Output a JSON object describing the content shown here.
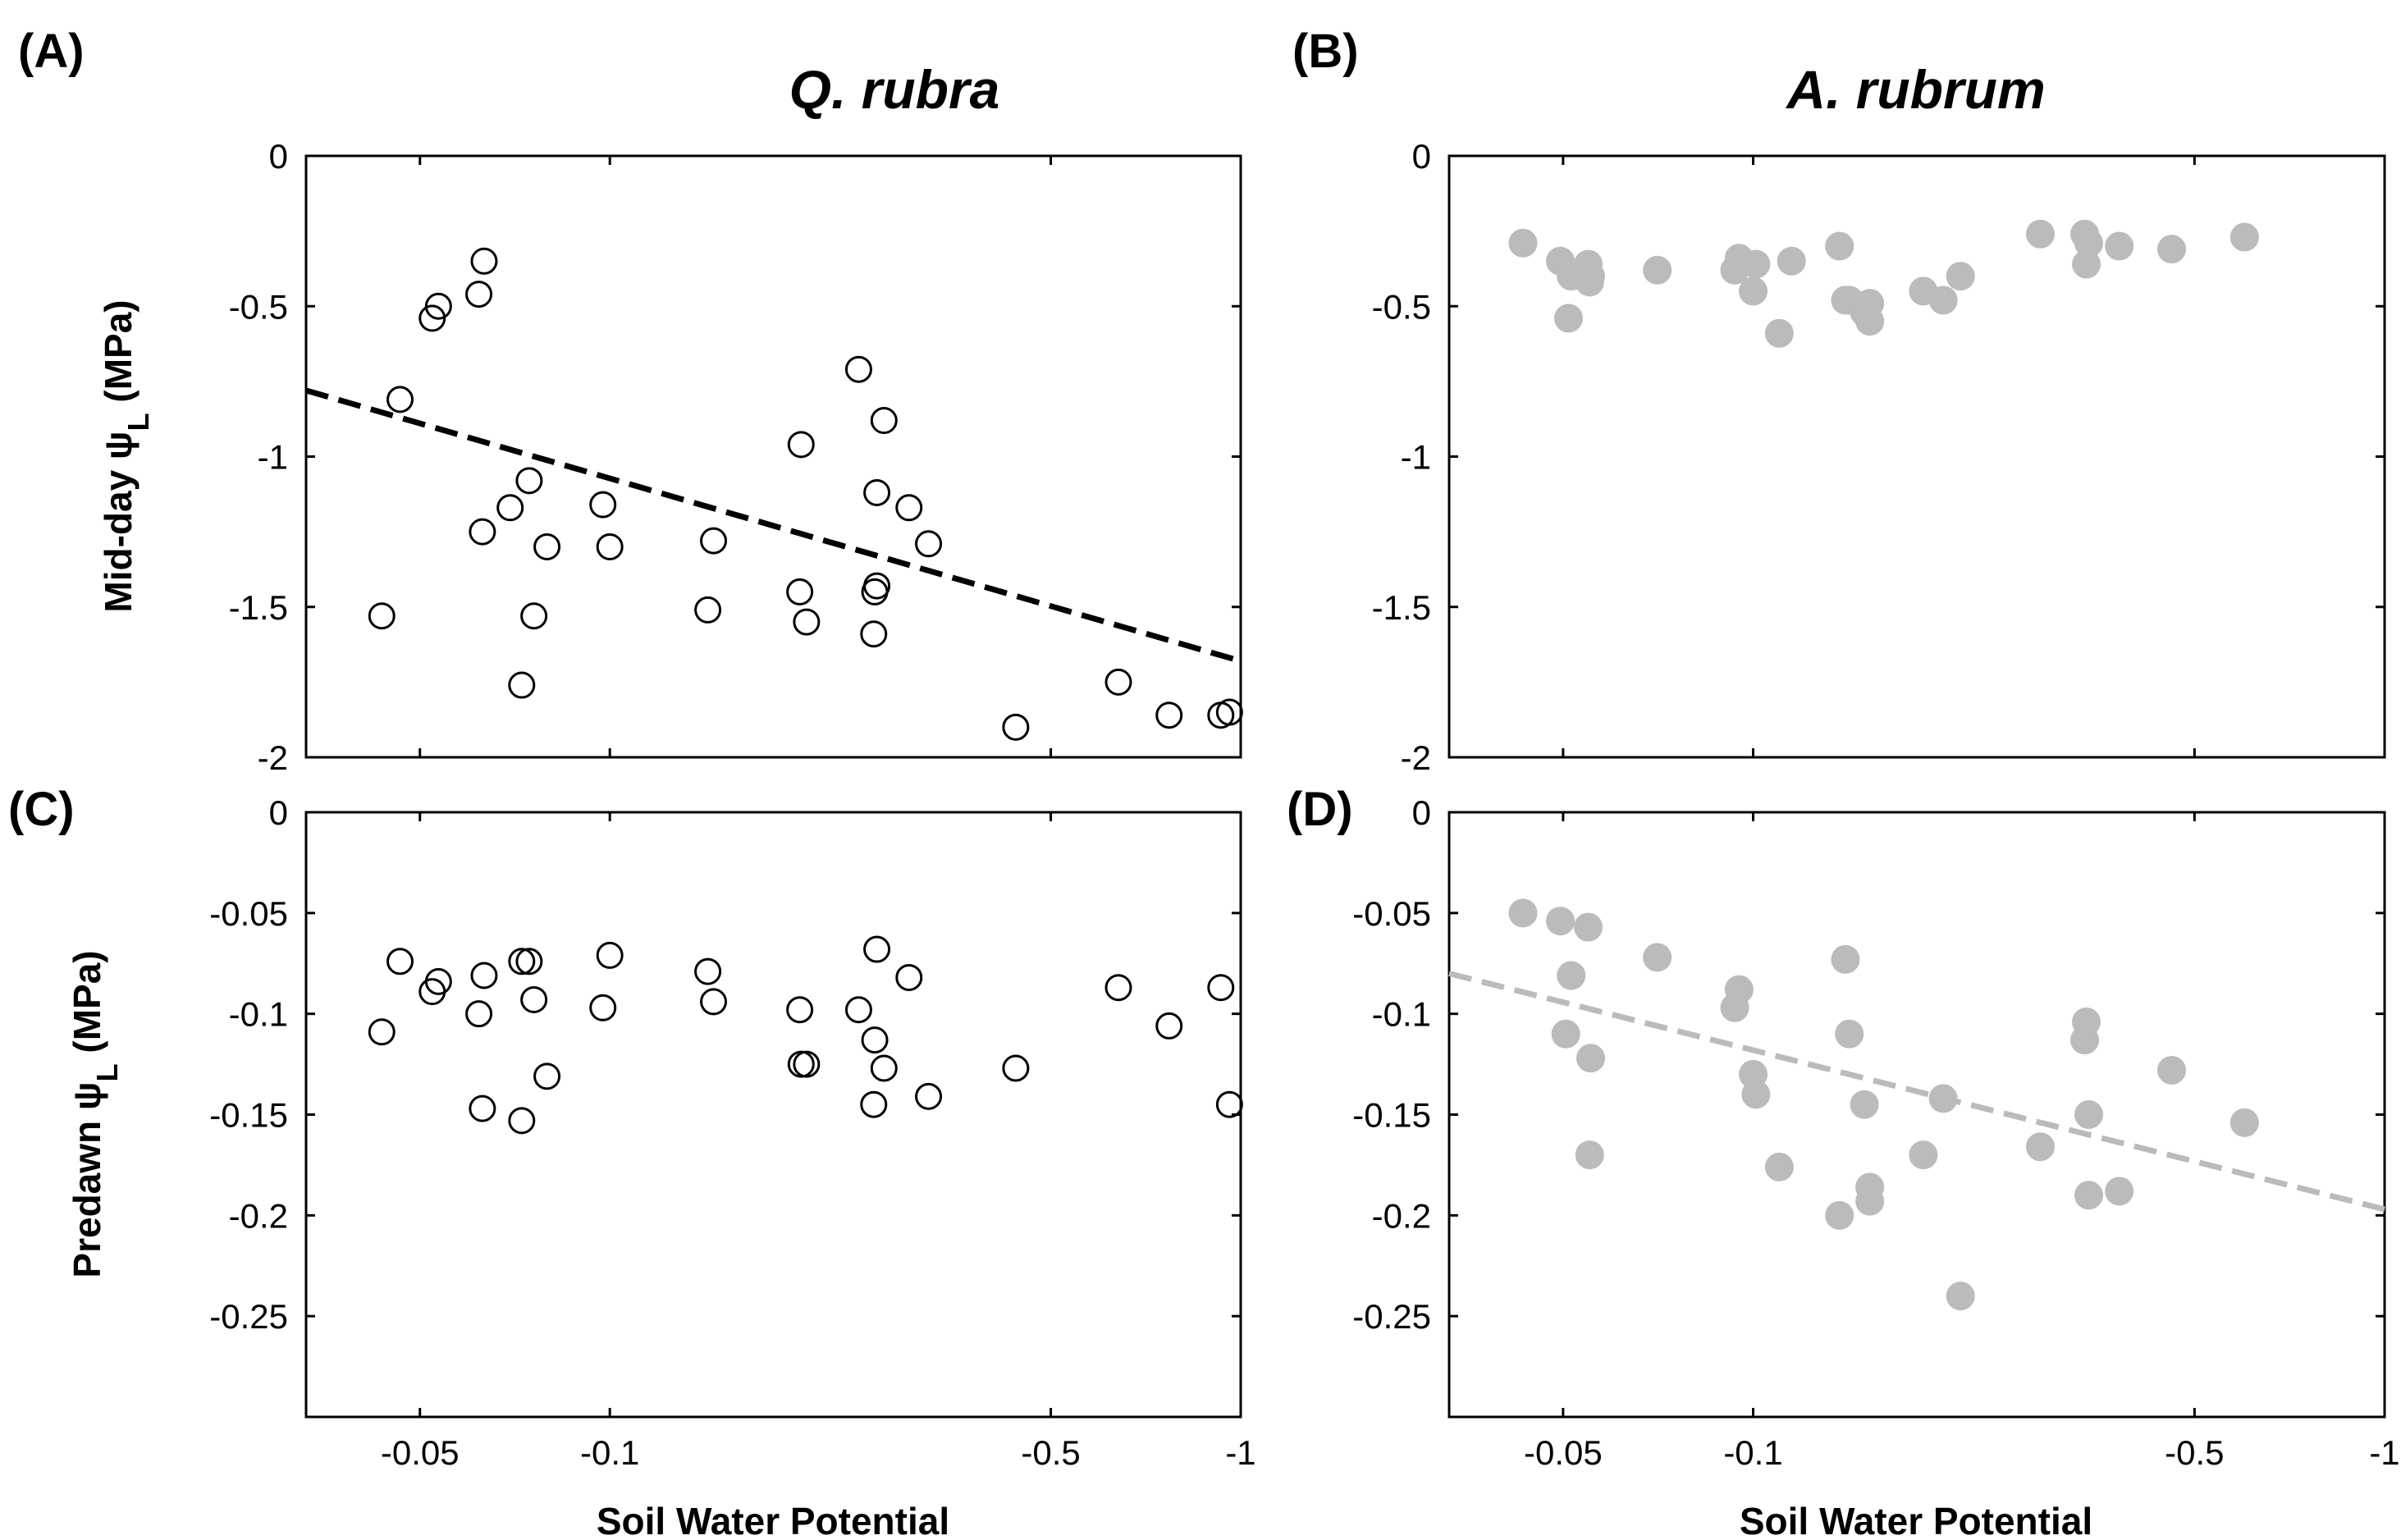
{
  "chart_data": [
    {
      "panel": "(A)",
      "type": "scatter",
      "title": "Q. rubra",
      "ylabel": "Mid-day ψL (MPa)",
      "ylabel_main": "Mid-day ",
      "ylabel_psi": "ψ",
      "ylabel_sub": "L",
      "ylabel_unit": " (MPa)",
      "xlabel": "",
      "xlim": [
        -0.033,
        -1.0
      ],
      "ylim": [
        -2,
        0
      ],
      "xticks": [
        -0.05,
        -0.1,
        -0.5,
        -1
      ],
      "xtick_labels": [
        "",
        "",
        "",
        ""
      ],
      "yticks": [
        0,
        -0.5,
        -1,
        -1.5,
        -2
      ],
      "ytick_labels": [
        "0",
        "-0.5",
        "-1",
        "-1.5",
        "-2"
      ],
      "series": [
        {
          "name": "Q. rubra mid-day",
          "marker": "open-circle",
          "color": "#000000",
          "x": [
            -0.0435,
            -0.0465,
            -0.0523,
            -0.0535,
            -0.062,
            -0.0632,
            -0.0628,
            -0.0745,
            -0.0758,
            -0.0725,
            -0.0795,
            -0.0695,
            -0.0975,
            -0.1,
            -0.146,
            -0.143,
            -0.205,
            -0.2,
            -0.201,
            -0.248,
            -0.263,
            -0.262,
            -0.272,
            -0.265,
            -0.265,
            -0.298,
            -0.32,
            -0.44,
            -0.64,
            -0.77,
            -0.96,
            -0.93
          ],
          "y": [
            -1.53,
            -0.81,
            -0.54,
            -0.5,
            -0.46,
            -0.35,
            -1.25,
            -1.08,
            -1.53,
            -1.76,
            -1.3,
            -1.17,
            -1.16,
            -1.3,
            -1.28,
            -1.51,
            -1.55,
            -1.45,
            -0.96,
            -0.71,
            -1.45,
            -1.59,
            -0.88,
            -1.12,
            -1.43,
            -1.17,
            -1.29,
            -1.9,
            -1.75,
            -1.86,
            -1.85,
            -1.86
          ]
        }
      ],
      "trend": {
        "style": "dashed",
        "color": "#000000",
        "x": [
          -0.033,
          -1.0
        ],
        "y": [
          -0.78,
          -1.68
        ]
      }
    },
    {
      "panel": "(B)",
      "type": "scatter",
      "title": "A. rubrum",
      "xlabel": "",
      "ylabel": "",
      "xlim": [
        -0.033,
        -1.0
      ],
      "ylim": [
        -2,
        0
      ],
      "xticks": [
        -0.05,
        -0.1,
        -0.5,
        -1
      ],
      "xtick_labels": [
        "",
        "",
        "",
        ""
      ],
      "yticks": [
        0,
        -0.5,
        -1,
        -1.5,
        -2
      ],
      "ytick_labels": [
        "0",
        "-0.5",
        "-1",
        "-1.5",
        "-2"
      ],
      "series": [
        {
          "name": "A. rubrum mid-day",
          "marker": "filled-circle",
          "color": "#bbbbbb",
          "x": [
            -0.0432,
            -0.0495,
            -0.0515,
            -0.051,
            -0.0548,
            -0.0553,
            -0.0551,
            -0.0705,
            -0.0935,
            -0.095,
            -0.1,
            -0.101,
            -0.11,
            -0.115,
            -0.137,
            -0.14,
            -0.142,
            -0.15,
            -0.153,
            -0.153,
            -0.186,
            -0.2,
            -0.213,
            -0.285,
            -0.335,
            -0.337,
            -0.34,
            -0.38,
            -0.46,
            -0.6
          ],
          "y": [
            -0.29,
            -0.35,
            -0.4,
            -0.54,
            -0.36,
            -0.4,
            -0.42,
            -0.38,
            -0.38,
            -0.34,
            -0.45,
            -0.36,
            -0.59,
            -0.35,
            -0.3,
            -0.48,
            -0.48,
            -0.52,
            -0.55,
            -0.49,
            -0.45,
            -0.48,
            -0.4,
            -0.26,
            -0.26,
            -0.36,
            -0.29,
            -0.3,
            -0.31,
            -0.27
          ]
        }
      ]
    },
    {
      "panel": "(C)",
      "type": "scatter",
      "title": "",
      "ylabel": "Predawn ψL (MPa)",
      "ylabel_main": "Predawn ",
      "ylabel_psi": "ψ",
      "ylabel_sub": "L",
      "ylabel_unit": " (MPa)",
      "xlabel": "Soil Water Potential",
      "xlim": [
        -0.033,
        -1.0
      ],
      "ylim": [
        -0.3,
        0
      ],
      "xticks": [
        -0.05,
        -0.1,
        -0.5,
        -1
      ],
      "xtick_labels": [
        "-0.05",
        "-0.1",
        "-0.5",
        "-1"
      ],
      "yticks": [
        0,
        -0.05,
        -0.1,
        -0.15,
        -0.2,
        -0.25
      ],
      "ytick_labels": [
        "0",
        "-0.05",
        "-0.1",
        "-0.15",
        "-0.2",
        "-0.25"
      ],
      "series": [
        {
          "name": "Q. rubra predawn",
          "marker": "open-circle",
          "color": "#000000",
          "x": [
            -0.0435,
            -0.0465,
            -0.0523,
            -0.0535,
            -0.062,
            -0.0632,
            -0.0628,
            -0.0745,
            -0.0758,
            -0.0725,
            -0.0795,
            -0.0725,
            -0.0975,
            -0.1,
            -0.146,
            -0.143,
            -0.205,
            -0.2,
            -0.201,
            -0.248,
            -0.263,
            -0.262,
            -0.272,
            -0.265,
            -0.298,
            -0.32,
            -0.44,
            -0.64,
            -0.77,
            -0.96,
            -0.93
          ],
          "y": [
            -0.109,
            -0.074,
            -0.089,
            -0.084,
            -0.1,
            -0.081,
            -0.147,
            -0.074,
            -0.093,
            -0.153,
            -0.131,
            -0.074,
            -0.097,
            -0.071,
            -0.094,
            -0.079,
            -0.125,
            -0.098,
            -0.125,
            -0.098,
            -0.113,
            -0.145,
            -0.127,
            -0.068,
            -0.082,
            -0.141,
            -0.127,
            -0.087,
            -0.106,
            -0.145,
            -0.087
          ]
        }
      ]
    },
    {
      "panel": "(D)",
      "type": "scatter",
      "title": "",
      "ylabel": "",
      "xlabel": "Soil Water Potential",
      "xlim": [
        -0.033,
        -1.0
      ],
      "ylim": [
        -0.3,
        0
      ],
      "xticks": [
        -0.05,
        -0.1,
        -0.5,
        -1
      ],
      "xtick_labels": [
        "-0.05",
        "-0.1",
        "-0.5",
        "-1"
      ],
      "yticks": [
        0,
        -0.05,
        -0.1,
        -0.15,
        -0.2,
        -0.25
      ],
      "ytick_labels": [
        "0",
        "-0.05",
        "-0.1",
        "-0.15",
        "-0.2",
        "-0.25"
      ],
      "series": [
        {
          "name": "A. rubrum predawn",
          "marker": "filled-circle",
          "color": "#bbbbbb",
          "x": [
            -0.0432,
            -0.0495,
            -0.0505,
            -0.0515,
            -0.0548,
            -0.0553,
            -0.0551,
            -0.0705,
            -0.0935,
            -0.095,
            -0.1,
            -0.101,
            -0.11,
            -0.137,
            -0.14,
            -0.142,
            -0.15,
            -0.153,
            -0.153,
            -0.186,
            -0.2,
            -0.213,
            -0.285,
            -0.335,
            -0.337,
            -0.34,
            -0.34,
            -0.38,
            -0.46,
            -0.6
          ],
          "y": [
            -0.05,
            -0.054,
            -0.11,
            -0.081,
            -0.057,
            -0.122,
            -0.17,
            -0.072,
            -0.097,
            -0.088,
            -0.13,
            -0.14,
            -0.176,
            -0.2,
            -0.073,
            -0.11,
            -0.145,
            -0.186,
            -0.193,
            -0.17,
            -0.142,
            -0.24,
            -0.166,
            -0.113,
            -0.104,
            -0.15,
            -0.19,
            -0.188,
            -0.128,
            -0.154
          ]
        }
      ],
      "trend": {
        "style": "dashed",
        "color": "#bbbbbb",
        "x": [
          -0.033,
          -1.0
        ],
        "y": [
          -0.08,
          -0.197
        ]
      }
    }
  ]
}
